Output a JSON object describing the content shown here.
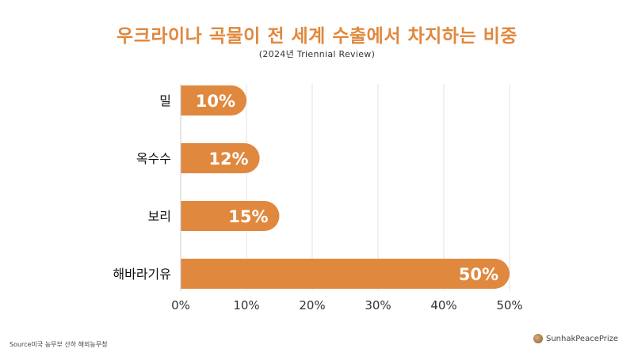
{
  "title": "우크라이나 곡물이 전 세계 수출에서 차지하는 비중",
  "subtitle": "(2024년 Triennial Review)",
  "source": "Source미국 농무부 산하 해외농무청",
  "brand": "SunhakPeacePrize",
  "colors": {
    "accent": "#e0883e",
    "bar": "#e0883e",
    "grid": "#e3e3e3",
    "axis": "#333333"
  },
  "chart_data": {
    "type": "bar",
    "orientation": "horizontal",
    "categories": [
      "밀",
      "옥수수",
      "보리",
      "해바라기유"
    ],
    "values": [
      10,
      12,
      15,
      50
    ],
    "data_labels": [
      "10%",
      "12%",
      "15%",
      "50%"
    ],
    "xlim": [
      0,
      50
    ],
    "xticks": [
      "0%",
      "10%",
      "20%",
      "30%",
      "40%",
      "50%"
    ],
    "xlabel": "",
    "ylabel": "",
    "grid": true,
    "legend": "none"
  }
}
